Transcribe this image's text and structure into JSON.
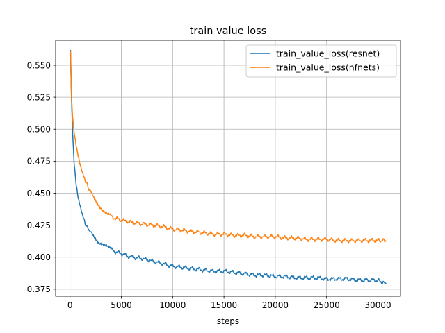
{
  "chart_data": {
    "type": "line",
    "title": "train value loss",
    "xlabel": "steps",
    "ylabel": "",
    "xlim": [
      -1400,
      32200
    ],
    "ylim": [
      0.3695,
      0.5695
    ],
    "xticks": [
      0,
      5000,
      10000,
      15000,
      20000,
      25000,
      30000
    ],
    "xtick_labels": [
      "0",
      "5000",
      "10000",
      "15000",
      "20000",
      "25000",
      "30000"
    ],
    "yticks": [
      0.375,
      0.4,
      0.425,
      0.45,
      0.475,
      0.5,
      0.525,
      0.55
    ],
    "ytick_labels": [
      "0.375",
      "0.400",
      "0.425",
      "0.450",
      "0.475",
      "0.500",
      "0.525",
      "0.550"
    ],
    "grid": true,
    "legend_position": "top-right",
    "series": [
      {
        "name": "train_value_loss(resnet)",
        "color": "#1f77b4",
        "x": [
          50,
          150,
          250,
          400,
          600,
          800,
          1000,
          1200,
          1400,
          1700,
          2000,
          2400,
          2800,
          3200,
          3600,
          4000,
          4500,
          5000,
          5500,
          6000,
          7000,
          8000,
          9000,
          10000,
          11000,
          12000,
          13000,
          14000,
          15000,
          16000,
          17000,
          18000,
          19000,
          20000,
          21000,
          22000,
          23000,
          24000,
          25000,
          26000,
          27000,
          28000,
          29000,
          30000,
          30800
        ],
        "y": [
          0.562,
          0.523,
          0.498,
          0.475,
          0.458,
          0.447,
          0.44,
          0.433,
          0.428,
          0.423,
          0.42,
          0.416,
          0.412,
          0.41,
          0.408,
          0.406,
          0.404,
          0.403,
          0.401,
          0.4,
          0.399,
          0.397,
          0.395,
          0.393,
          0.392,
          0.391,
          0.39,
          0.389,
          0.389,
          0.388,
          0.387,
          0.386,
          0.386,
          0.385,
          0.385,
          0.384,
          0.384,
          0.384,
          0.383,
          0.383,
          0.383,
          0.382,
          0.382,
          0.382,
          0.379
        ]
      },
      {
        "name": "train_value_loss(nfnets)",
        "color": "#ff7f0e",
        "x": [
          50,
          150,
          250,
          400,
          600,
          800,
          1000,
          1200,
          1400,
          1700,
          2000,
          2400,
          2800,
          3200,
          3600,
          4000,
          4500,
          5000,
          5500,
          6000,
          7000,
          8000,
          9000,
          10000,
          11000,
          12000,
          13000,
          14000,
          15000,
          16000,
          17000,
          18000,
          19000,
          20000,
          21000,
          22000,
          23000,
          24000,
          25000,
          26000,
          27000,
          28000,
          29000,
          30000,
          30800
        ],
        "y": [
          0.561,
          0.525,
          0.51,
          0.498,
          0.488,
          0.48,
          0.473,
          0.467,
          0.462,
          0.456,
          0.451,
          0.445,
          0.441,
          0.437,
          0.434,
          0.432,
          0.43,
          0.429,
          0.428,
          0.427,
          0.426,
          0.425,
          0.424,
          0.422,
          0.421,
          0.42,
          0.419,
          0.418,
          0.418,
          0.417,
          0.417,
          0.416,
          0.416,
          0.416,
          0.415,
          0.415,
          0.414,
          0.414,
          0.414,
          0.413,
          0.413,
          0.413,
          0.413,
          0.413,
          0.413
        ]
      }
    ]
  }
}
